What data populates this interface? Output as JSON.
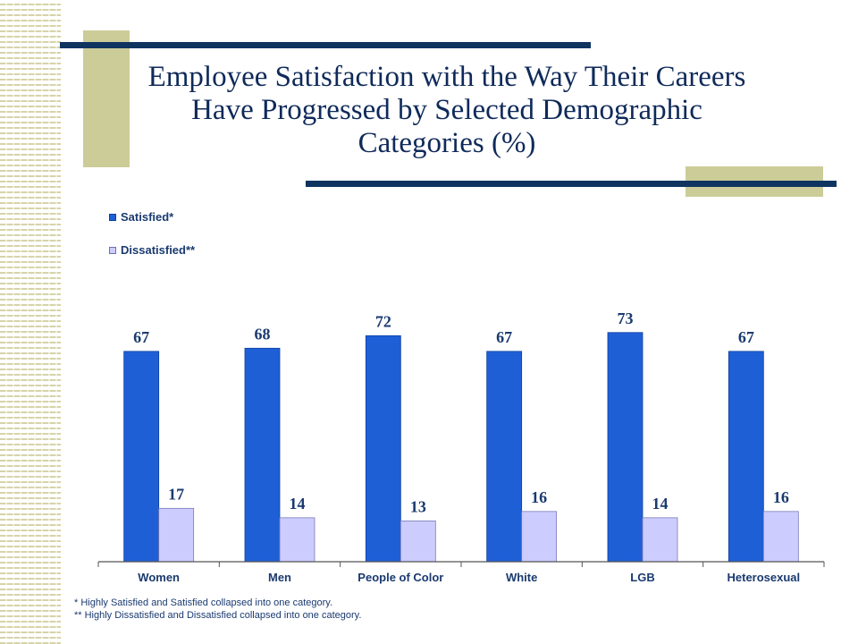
{
  "title": "Employee Satisfaction with the Way Their Careers Have Progressed by Selected Demographic Categories (%)",
  "colors": {
    "satisfied": "#1f5fd6",
    "dissatisfied": "#ccccff",
    "accent_block": "#cccc99",
    "accent_line": "#0f3460",
    "text": "#1a3a70"
  },
  "chart_data": {
    "type": "bar",
    "categories": [
      "Women",
      "Men",
      "People of Color",
      "White",
      "LGB",
      "Heterosexual"
    ],
    "series": [
      {
        "name": "Satisfied*",
        "values": [
          67,
          68,
          72,
          67,
          73,
          67
        ]
      },
      {
        "name": "Dissatisfied**",
        "values": [
          17,
          14,
          13,
          16,
          14,
          16
        ]
      }
    ],
    "ylim": [
      0,
      100
    ],
    "grid": false,
    "legend": "top-left",
    "data_labels": true
  },
  "footnotes": [
    "* Highly Satisfied and Satisfied collapsed into one category.",
    "** Highly Dissatisfied and Dissatisfied collapsed into one category."
  ]
}
